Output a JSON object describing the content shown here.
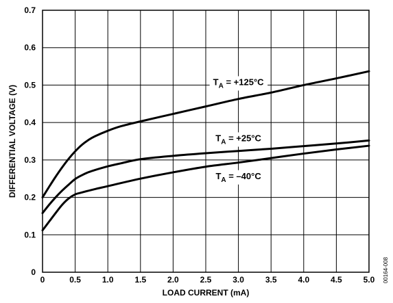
{
  "chart_data": {
    "type": "line",
    "xlabel": "LOAD CURRENT (mA)",
    "ylabel": "DIFFERENTIAL VOLTAGE (V)",
    "xlim": [
      0,
      5.0
    ],
    "ylim": [
      0,
      0.7
    ],
    "xticks": [
      "0",
      "0.5",
      "1.0",
      "1.5",
      "2.0",
      "2.5",
      "3.0",
      "3.5",
      "4.0",
      "4.5",
      "5.0"
    ],
    "yticks": [
      "0",
      "0.1",
      "0.2",
      "0.3",
      "0.4",
      "0.5",
      "0.6",
      "0.7"
    ],
    "grid": true,
    "series": [
      {
        "name": "TA = +125°C",
        "label_main": "T",
        "label_sub": "A",
        "label_rest": " = +125°C",
        "x": [
          0,
          0.1,
          0.2,
          0.3,
          0.4,
          0.5,
          0.6,
          0.7,
          0.8,
          1.0,
          1.2,
          1.5,
          2.0,
          2.5,
          3.0,
          3.5,
          4.0,
          4.5,
          5.0
        ],
        "y": [
          0.2,
          0.228,
          0.255,
          0.28,
          0.303,
          0.323,
          0.34,
          0.353,
          0.363,
          0.378,
          0.39,
          0.403,
          0.423,
          0.443,
          0.463,
          0.48,
          0.5,
          0.518,
          0.537
        ]
      },
      {
        "name": "TA = +25°C",
        "label_main": "T",
        "label_sub": "A",
        "label_rest": " = +25°C",
        "x": [
          0,
          0.1,
          0.2,
          0.3,
          0.4,
          0.5,
          0.6,
          0.7,
          0.8,
          1.0,
          1.2,
          1.5,
          2.0,
          2.5,
          3.0,
          3.5,
          4.0,
          4.5,
          5.0
        ],
        "y": [
          0.158,
          0.18,
          0.2,
          0.218,
          0.234,
          0.249,
          0.259,
          0.267,
          0.273,
          0.283,
          0.291,
          0.302,
          0.311,
          0.318,
          0.324,
          0.33,
          0.337,
          0.344,
          0.352
        ]
      },
      {
        "name": "TA = –40°C",
        "label_main": "T",
        "label_sub": "A",
        "label_rest": " = –40°C",
        "x": [
          0,
          0.1,
          0.2,
          0.3,
          0.4,
          0.5,
          0.6,
          0.8,
          1.0,
          1.5,
          2.0,
          2.5,
          3.0,
          3.5,
          4.0,
          4.5,
          5.0
        ],
        "y": [
          0.112,
          0.135,
          0.158,
          0.18,
          0.197,
          0.208,
          0.213,
          0.222,
          0.23,
          0.25,
          0.267,
          0.282,
          0.293,
          0.305,
          0.317,
          0.328,
          0.338
        ]
      }
    ]
  },
  "figure_code": "00164-008"
}
